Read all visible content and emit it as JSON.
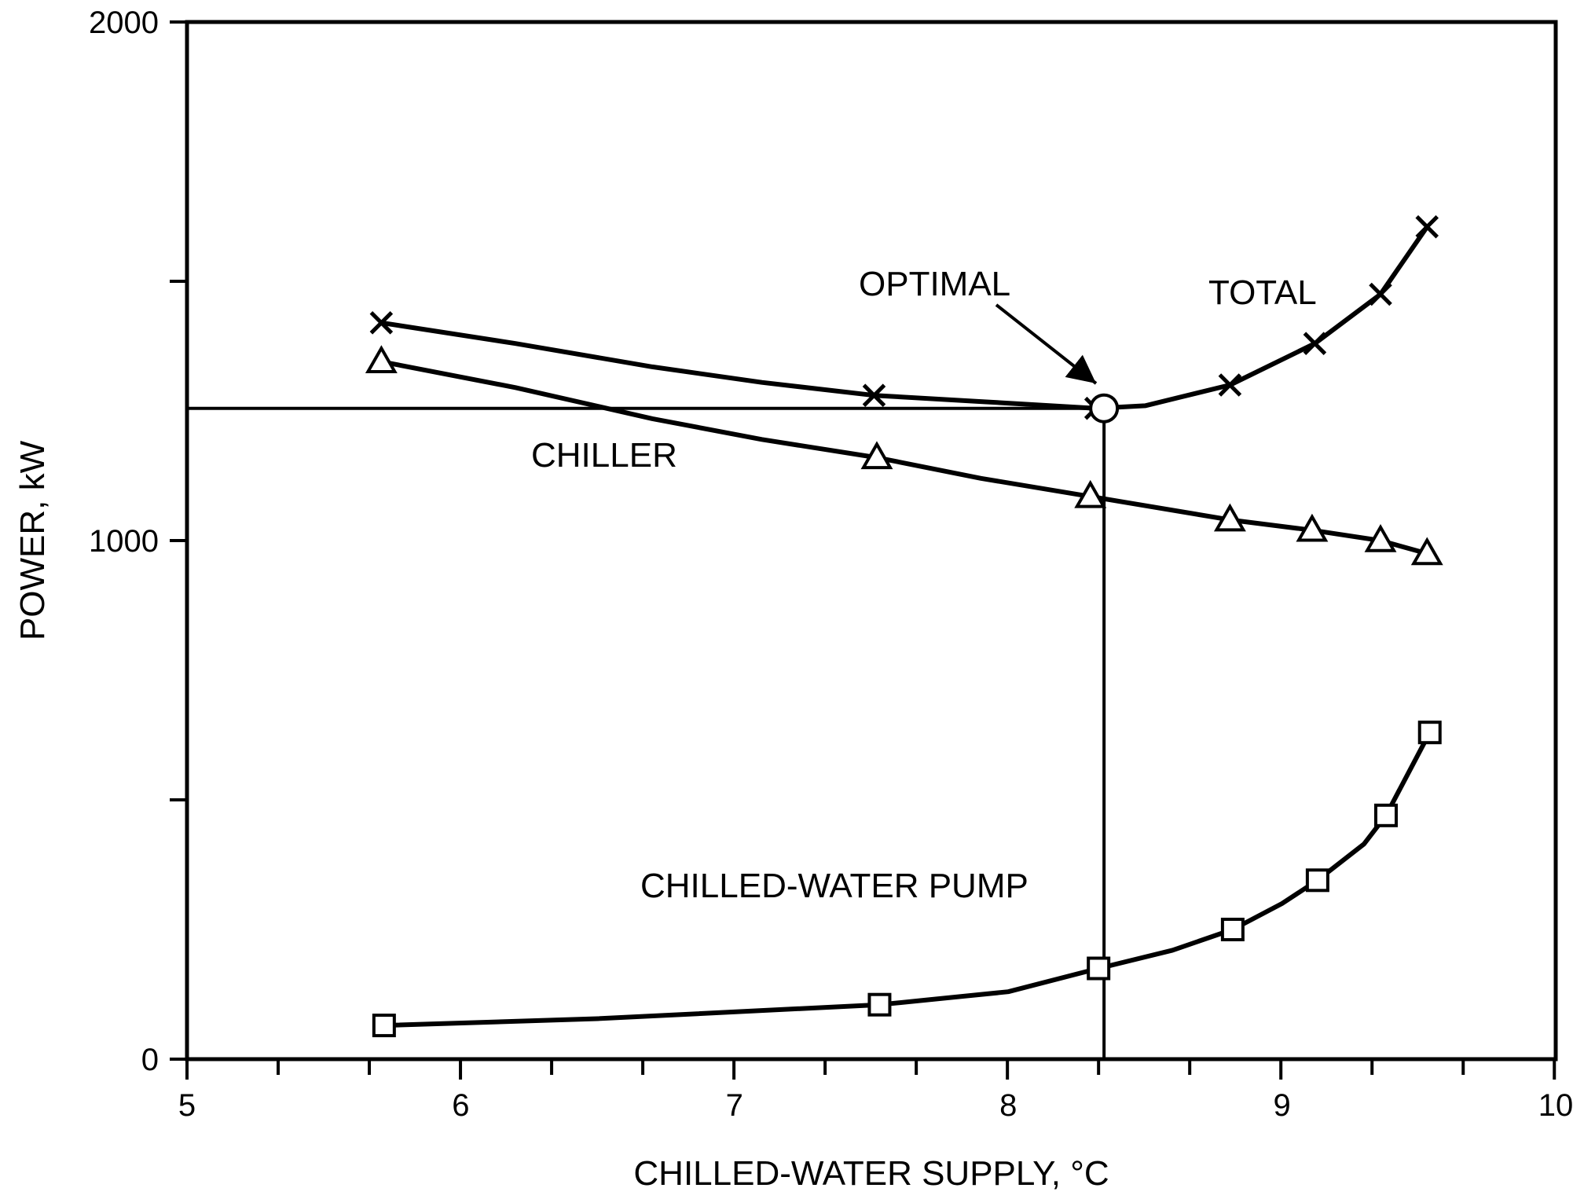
{
  "chart_data": {
    "type": "line",
    "title": "",
    "xlabel": "CHILLED-WATER SUPPLY, °C",
    "ylabel": "POWER, kW",
    "xlim": [
      5,
      10
    ],
    "ylim": [
      0,
      2000
    ],
    "x_ticks": [
      5,
      6,
      7,
      8,
      9,
      10
    ],
    "x_tick_labels": [
      "5",
      "6",
      "7",
      "8",
      "9",
      "10"
    ],
    "x_minor_step": 0.333,
    "y_ticks": [
      0,
      1000,
      2000
    ],
    "y_tick_labels": [
      "0",
      "1000",
      "2000"
    ],
    "y_minor_step": 500,
    "grid": false,
    "legend": "none",
    "series": [
      {
        "marker": "x",
        "x": [
          5.71,
          7.51,
          8.32,
          8.81,
          9.12,
          9.36,
          9.53
        ],
        "y": [
          1420,
          1280,
          1255,
          1300,
          1380,
          1475,
          1605
        ],
        "curve": [
          [
            5.71,
            1420
          ],
          [
            6.2,
            1380
          ],
          [
            6.7,
            1335
          ],
          [
            7.1,
            1305
          ],
          [
            7.51,
            1280
          ],
          [
            7.9,
            1268
          ],
          [
            8.32,
            1255
          ],
          [
            8.5,
            1260
          ],
          [
            8.81,
            1300
          ],
          [
            9.12,
            1380
          ],
          [
            9.36,
            1475
          ],
          [
            9.53,
            1605
          ]
        ]
      },
      {
        "marker": "triangle",
        "x": [
          5.71,
          7.52,
          8.3,
          8.81,
          9.11,
          9.36,
          9.53
        ],
        "y": [
          1345,
          1160,
          1085,
          1040,
          1020,
          1000,
          975
        ],
        "curve": [
          [
            5.71,
            1345
          ],
          [
            6.2,
            1295
          ],
          [
            6.7,
            1235
          ],
          [
            7.1,
            1195
          ],
          [
            7.52,
            1160
          ],
          [
            7.9,
            1120
          ],
          [
            8.3,
            1085
          ],
          [
            8.81,
            1040
          ],
          [
            9.11,
            1020
          ],
          [
            9.36,
            1000
          ],
          [
            9.53,
            975
          ]
        ]
      },
      {
        "marker": "square",
        "x": [
          5.72,
          7.53,
          8.33,
          8.82,
          9.13,
          9.38,
          9.54
        ],
        "y": [
          65,
          105,
          175,
          250,
          345,
          470,
          630
        ],
        "curve": [
          [
            5.72,
            65
          ],
          [
            6.5,
            78
          ],
          [
            7.53,
            105
          ],
          [
            8.0,
            130
          ],
          [
            8.33,
            175
          ],
          [
            8.6,
            210
          ],
          [
            8.82,
            250
          ],
          [
            9.0,
            300
          ],
          [
            9.13,
            345
          ],
          [
            9.3,
            415
          ],
          [
            9.38,
            470
          ],
          [
            9.54,
            630
          ]
        ]
      }
    ],
    "optimal": {
      "x": 8.35,
      "y": 1255
    },
    "annotations": {
      "total": "TOTAL",
      "chiller": "CHILLER",
      "pump": "CHILLED-WATER PUMP",
      "optimal": "OPTIMAL"
    },
    "colors": {
      "ink": "#000000",
      "background": "#ffffff"
    }
  }
}
